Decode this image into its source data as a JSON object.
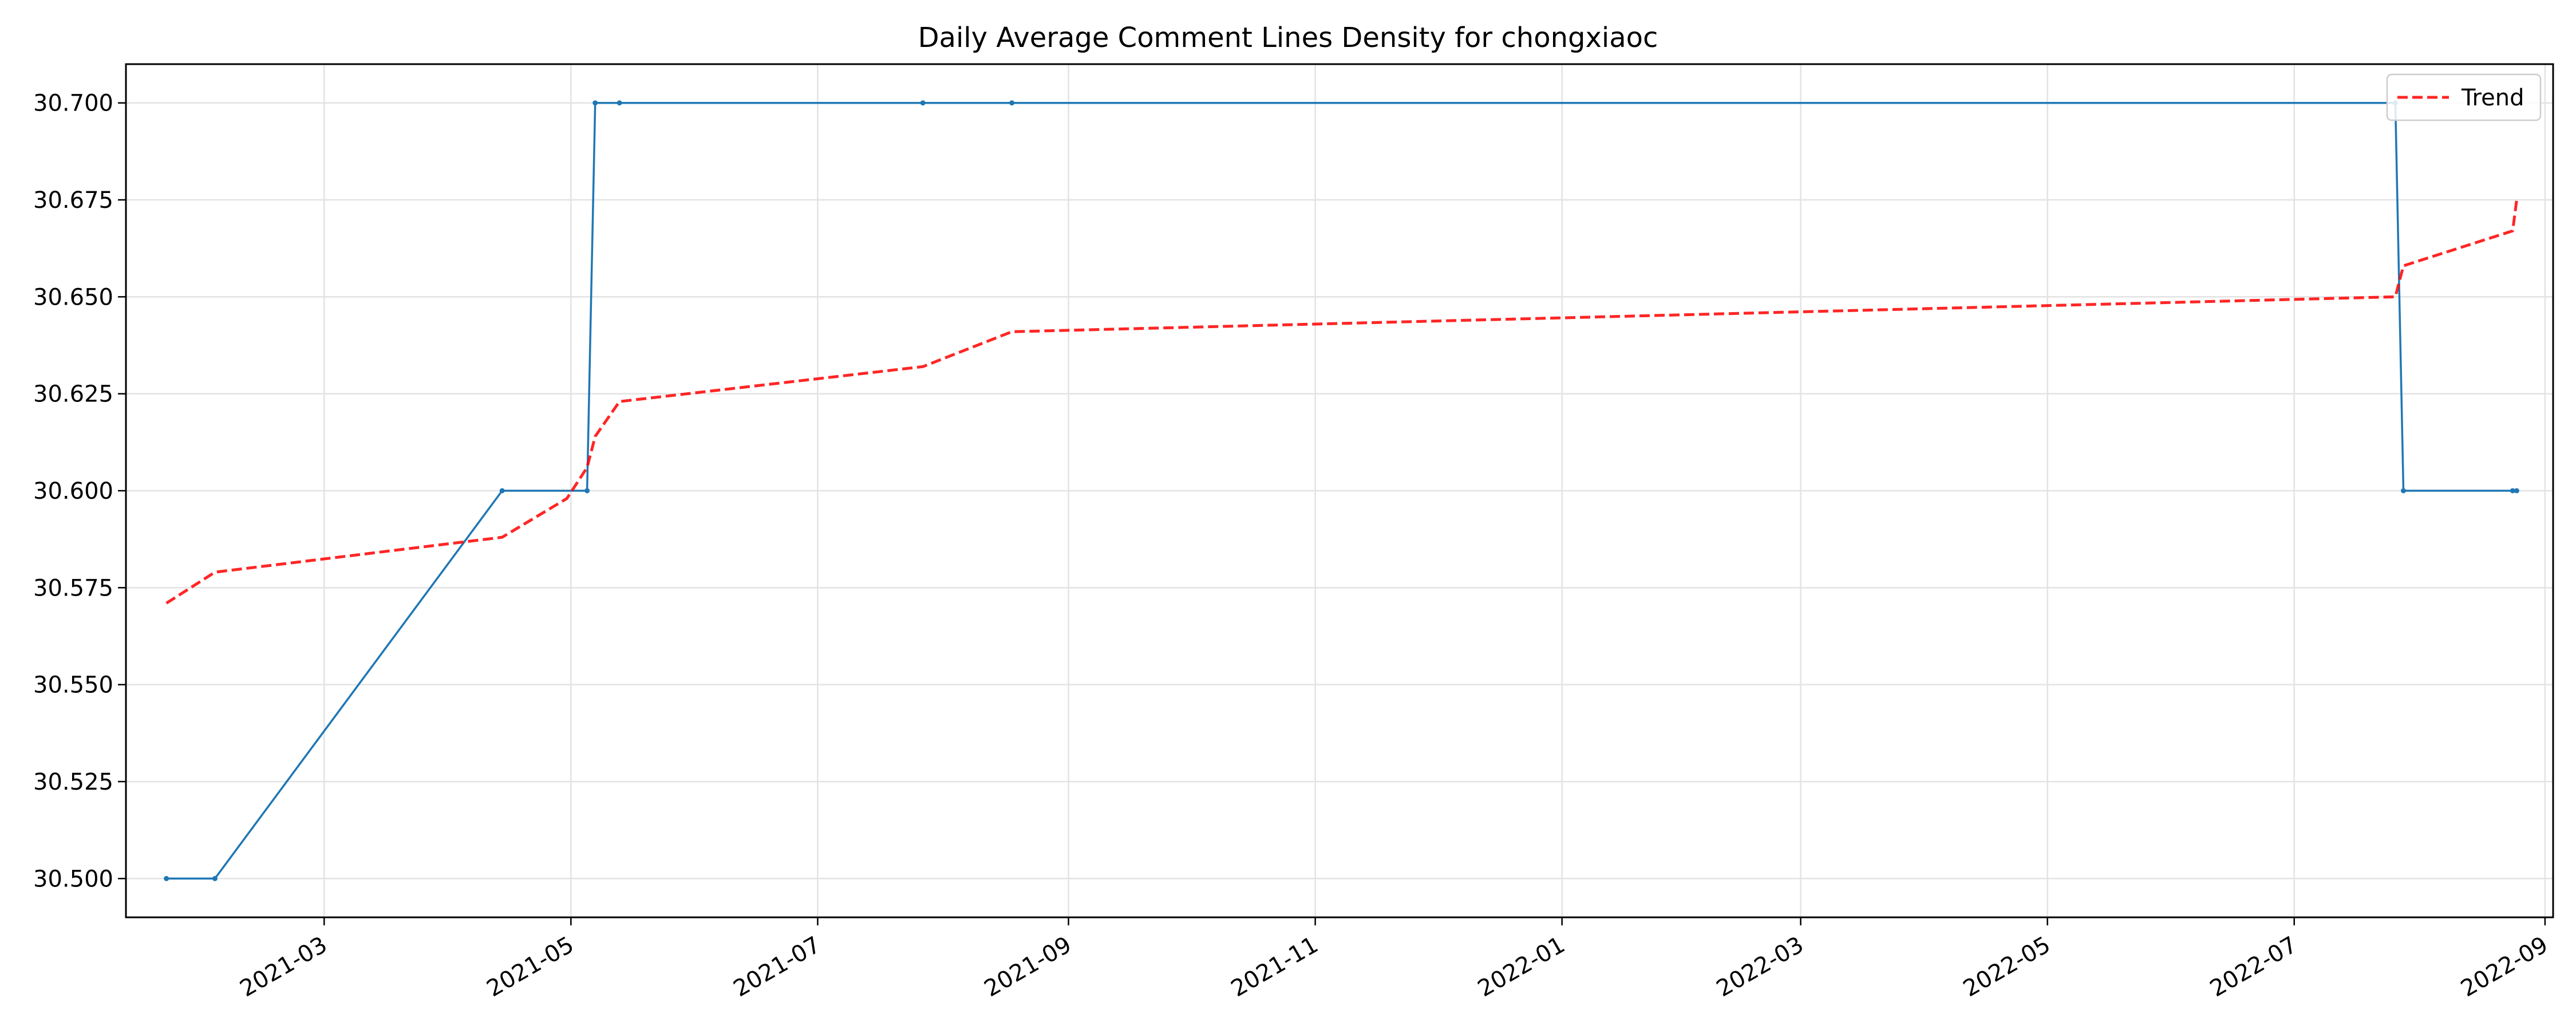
{
  "chart_data": {
    "type": "line",
    "title": "Daily Average Comment Lines Density for chongxiaoc",
    "xlabel": "",
    "ylabel": "",
    "x_axis_type": "date",
    "xlim": [
      "2021-01-11",
      "2022-09-03"
    ],
    "ylim": [
      30.49,
      30.71
    ],
    "x_ticks": [
      "2021-03",
      "2021-05",
      "2021-07",
      "2021-09",
      "2021-11",
      "2022-01",
      "2022-03",
      "2022-05",
      "2022-07",
      "2022-09"
    ],
    "y_ticks": [
      "30.500",
      "30.525",
      "30.550",
      "30.575",
      "30.600",
      "30.625",
      "30.650",
      "30.675",
      "30.700"
    ],
    "grid": true,
    "legend_position": "top-right",
    "series": [
      {
        "color": "#1f77b4",
        "style": "solid",
        "marker": "point",
        "points": [
          {
            "x": "2021-01-21",
            "y": 30.5
          },
          {
            "x": "2021-02-02",
            "y": 30.5
          },
          {
            "x": "2021-04-14",
            "y": 30.6
          },
          {
            "x": "2021-05-05",
            "y": 30.6
          },
          {
            "x": "2021-05-07",
            "y": 30.7
          },
          {
            "x": "2021-05-13",
            "y": 30.7
          },
          {
            "x": "2021-07-27",
            "y": 30.7
          },
          {
            "x": "2021-08-18",
            "y": 30.7
          },
          {
            "x": "2022-07-26",
            "y": 30.7
          },
          {
            "x": "2022-07-28",
            "y": 30.6
          },
          {
            "x": "2022-08-24",
            "y": 30.6
          },
          {
            "x": "2022-08-25",
            "y": 30.6
          }
        ]
      },
      {
        "name": "Trend",
        "color": "#ff0000",
        "style": "dashed",
        "points": [
          {
            "x": "2021-01-21",
            "y": 30.571
          },
          {
            "x": "2021-02-02",
            "y": 30.579
          },
          {
            "x": "2021-04-14",
            "y": 30.588
          },
          {
            "x": "2021-04-30",
            "y": 30.598
          },
          {
            "x": "2021-05-05",
            "y": 30.606
          },
          {
            "x": "2021-05-07",
            "y": 30.614
          },
          {
            "x": "2021-05-13",
            "y": 30.623
          },
          {
            "x": "2021-07-27",
            "y": 30.632
          },
          {
            "x": "2021-08-18",
            "y": 30.641
          },
          {
            "x": "2022-07-26",
            "y": 30.65
          },
          {
            "x": "2022-07-28",
            "y": 30.658
          },
          {
            "x": "2022-08-24",
            "y": 30.667
          },
          {
            "x": "2022-08-25",
            "y": 30.675
          }
        ]
      }
    ]
  }
}
